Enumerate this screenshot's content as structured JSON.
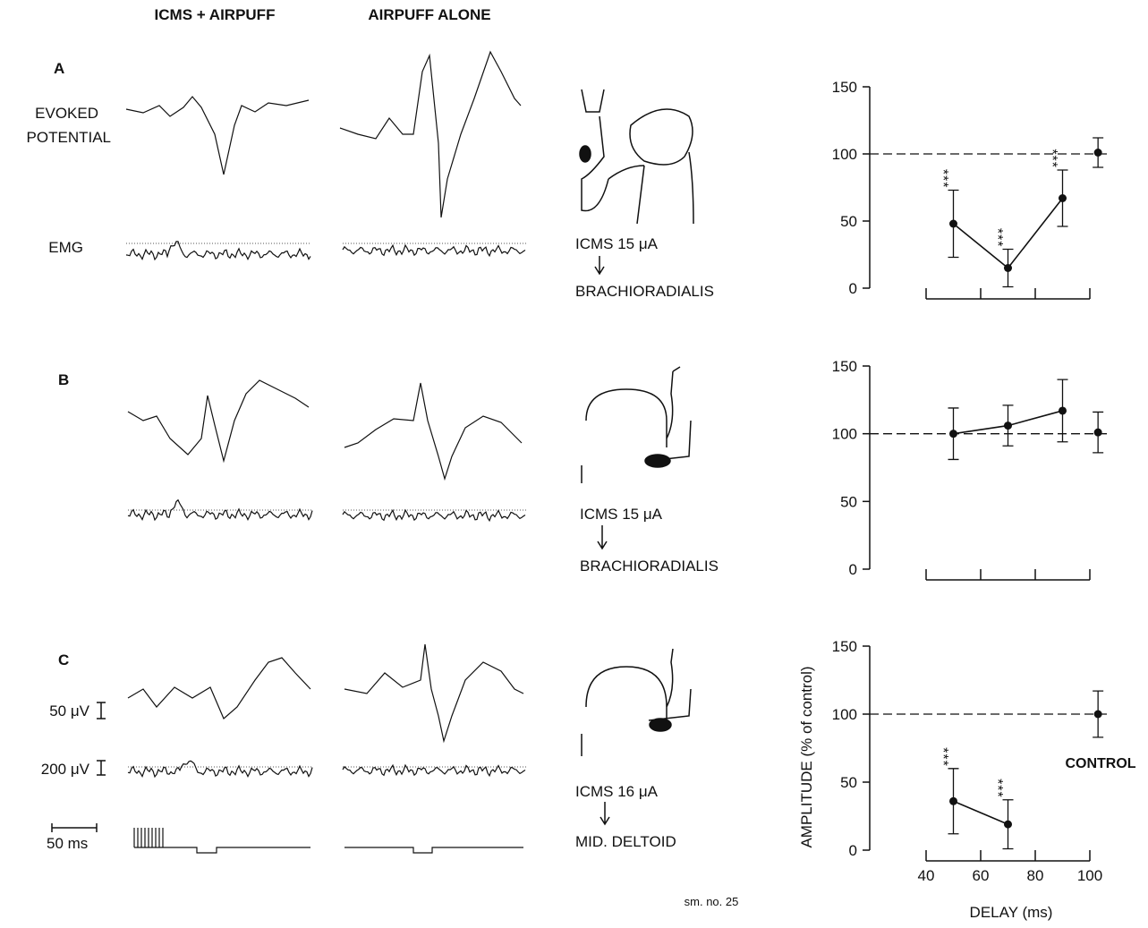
{
  "figure": {
    "column_titles": [
      "ICMS + AIRPUFF",
      "AIRPUFF ALONE"
    ],
    "panels": [
      "A",
      "B",
      "C"
    ],
    "evoked_potential": [
      "EVOKED",
      "POTENTIAL"
    ],
    "emg": "EMG",
    "stimulation": [
      {
        "current": "ICMS 15 μA",
        "muscle": "BRACHIORADIALIS"
      },
      {
        "current": "ICMS 15 μA",
        "muscle": "BRACHIORADIALIS"
      },
      {
        "current": "ICMS 16 μA",
        "muscle": "MID. DELTOID"
      }
    ],
    "scale_bars": [
      "50 μV",
      "200 μV",
      "50 ms"
    ],
    "footnote": "sm. no. 25"
  },
  "chart_data": [
    {
      "type": "line",
      "ylim": [
        0,
        150
      ],
      "yticks": [
        0,
        50,
        100,
        150
      ],
      "xlim": [
        20,
        108
      ],
      "xticks": [
        40,
        60,
        80,
        100
      ],
      "show_xtick_labels": false,
      "reference_line": 100,
      "series": [
        {
          "x": [
            50,
            70,
            90
          ],
          "values": [
            48,
            15,
            67
          ],
          "errors": [
            25,
            14,
            21
          ],
          "significance": [
            "***",
            "***",
            "***"
          ],
          "line": true
        },
        {
          "x": [
            103
          ],
          "values": [
            101
          ],
          "errors": [
            11
          ],
          "line": false
        }
      ]
    },
    {
      "type": "line",
      "ylim": [
        0,
        150
      ],
      "yticks": [
        0,
        50,
        100,
        150
      ],
      "xlim": [
        20,
        108
      ],
      "xticks": [
        40,
        60,
        80,
        100
      ],
      "show_xtick_labels": false,
      "reference_line": 100,
      "series": [
        {
          "x": [
            50,
            70,
            90
          ],
          "values": [
            100,
            106,
            117
          ],
          "errors": [
            19,
            15,
            23
          ],
          "line": true
        },
        {
          "x": [
            103
          ],
          "values": [
            101
          ],
          "errors": [
            15
          ],
          "line": false
        }
      ]
    },
    {
      "type": "line",
      "ylim": [
        0,
        150
      ],
      "yticks": [
        0,
        50,
        100,
        150
      ],
      "xlim": [
        20,
        108
      ],
      "xticks": [
        40,
        60,
        80,
        100
      ],
      "show_xtick_labels": true,
      "reference_line": 100,
      "xlabel": "DELAY (ms)",
      "ylabel": "AMPLITUDE (% of control)",
      "control_label": "CONTROL",
      "series": [
        {
          "x": [
            50,
            70
          ],
          "values": [
            36,
            19
          ],
          "errors": [
            24,
            18
          ],
          "significance": [
            "***",
            "***"
          ],
          "line": true
        },
        {
          "x": [
            103
          ],
          "values": [
            100
          ],
          "errors": [
            17
          ],
          "line": false
        }
      ]
    }
  ]
}
